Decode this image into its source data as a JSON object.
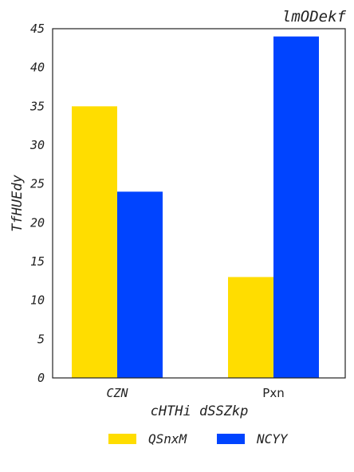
{
  "chart_data": {
    "type": "bar",
    "title": "lmODekf",
    "xlabel": "cHTHi dSSZkp",
    "ylabel": "TfHUEdy",
    "categories": [
      "CZN",
      "Pxn"
    ],
    "series": [
      {
        "name": "QSnxM",
        "values": [
          35,
          13
        ],
        "color": "#FFDD00"
      },
      {
        "name": "NCYY",
        "values": [
          24,
          44
        ],
        "color": "#0044FF"
      }
    ],
    "ylim": [
      0,
      45
    ],
    "yticks": [
      0,
      5,
      10,
      15,
      20,
      25,
      30,
      35,
      40,
      45
    ],
    "grid": false,
    "legend_position": "bottom-center"
  }
}
